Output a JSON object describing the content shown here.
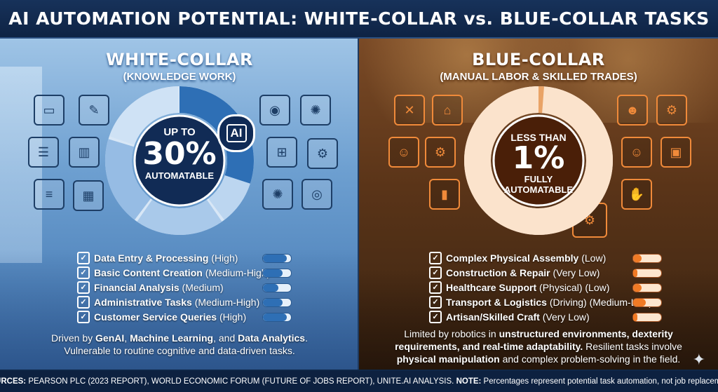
{
  "title": "AI AUTOMATION POTENTIAL: WHITE-COLLAR vs. BLUE-COLLAR TASKS",
  "white": {
    "heading": "WHITE-COLLAR",
    "subheading": "(KNOWLEDGE WORK)",
    "center_top": "UP TO",
    "center_value": "30%",
    "center_bottom": "AUTOMATABLE",
    "badge": "AI",
    "automatable_fraction": 0.3,
    "tasks": [
      {
        "name": "Data Entry & Processing",
        "level": "(High)",
        "fill": 0.85
      },
      {
        "name": "Basic Content Creation",
        "level": "(Medium-High)",
        "fill": 0.7
      },
      {
        "name": "Financial Analysis",
        "level": "(Medium)",
        "fill": 0.55
      },
      {
        "name": "Administrative Tasks",
        "level": "(Medium-High)",
        "fill": 0.7
      },
      {
        "name": "Customer Service Queries",
        "level": "(High)",
        "fill": 0.85
      }
    ],
    "desc_1": "Driven by ",
    "desc_b1": "GenAI",
    "desc_2": ", ",
    "desc_b2": "Machine Learning",
    "desc_3": ", and ",
    "desc_b3": "Data Analytics",
    "desc_4": ".",
    "desc_line2": "Vulnerable to routine cognitive and data-driven tasks."
  },
  "blue": {
    "heading": "BLUE-COLLAR",
    "subheading": "(MANUAL LABOR & SKILLED TRADES)",
    "center_top": "LESS THAN",
    "center_value": "1%",
    "center_bottom_1": "FULLY",
    "center_bottom_2": "AUTOMATABLE",
    "automatable_fraction": 0.01,
    "tasks": [
      {
        "name": "Complex Physical Assembly",
        "level": "(Low)",
        "fill": 0.3
      },
      {
        "name": "Construction & Repair",
        "level": "(Very Low)",
        "fill": 0.15
      },
      {
        "name": "Healthcare Support",
        "level": "(Physical) (Low)",
        "fill": 0.3
      },
      {
        "name": "Transport & Logistics",
        "level": "(Driving) (Medium-Low)",
        "fill": 0.45
      },
      {
        "name": "Artisan/Skilled Craft",
        "level": "(Very Low)",
        "fill": 0.15
      }
    ],
    "desc_1": "Limited by robotics in ",
    "desc_b1": "unstructured environments, dexterity requirements, and real-time adaptability.",
    "desc_2": " Resilient tasks involve ",
    "desc_b2": "physical manipulation",
    "desc_3": " and complex problem-solving in the field."
  },
  "footer": {
    "label_sources": "SOURCES:",
    "sources": " PEARSON PLC (2023 REPORT), WORLD ECONOMIC FORUM (FUTURE OF JOBS REPORT), UNITE.AI ANALYSIS. ",
    "label_note": "NOTE:",
    "note": " Percentages represent potential task automation, not job replacement."
  },
  "colors": {
    "white_accent": "#2e6fb5",
    "blue_accent": "#f07a25"
  }
}
